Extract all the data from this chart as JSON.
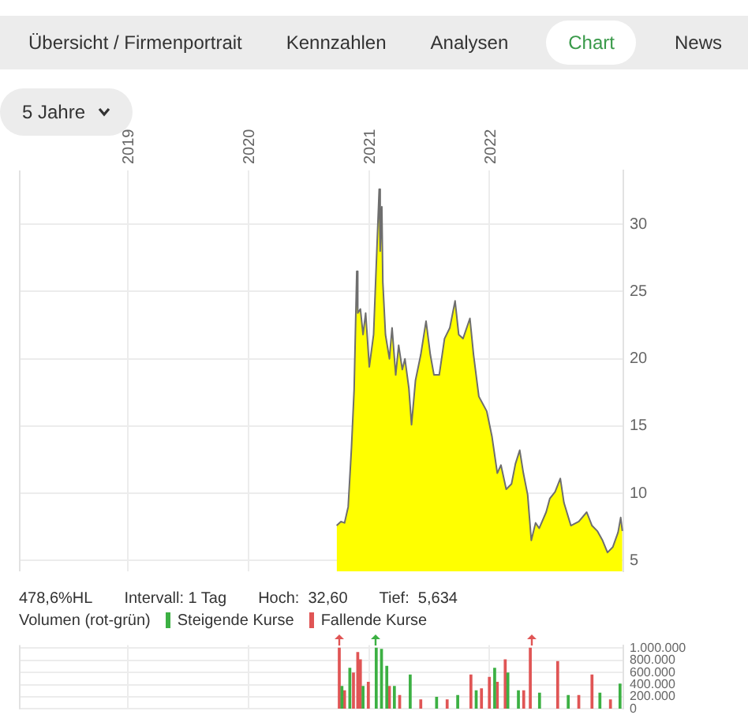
{
  "chart_data": [
    {
      "type": "other",
      "annotations": [
        "Übersicht / Firmenportrait",
        "Kennzahlen",
        "Analysen",
        "Chart",
        "News",
        "5 Jahre"
      ]
    },
    {
      "type": "area",
      "xlim": [
        "2018-02-05",
        "2023-02-11"
      ],
      "xticks": [
        "2019",
        "2020",
        "2021",
        "2022"
      ],
      "ylim": [
        4.2,
        34
      ],
      "yticks": [
        5,
        10,
        15,
        20,
        25,
        30
      ],
      "grid": true,
      "marker": "none",
      "annotations": [
        "478,6%HL",
        "Intervall: 1 Tag",
        "Hoch:  32,60",
        "Tief:  5,634"
      ],
      "x": [
        "2020-09-25",
        "2020-10-08",
        "2020-10-19",
        "2020-10-30",
        "2020-11-09",
        "2020-11-17",
        "2020-11-25",
        "2020-11-28",
        "2020-12-06",
        "2020-12-14",
        "2020-12-22",
        "2021-01-02",
        "2021-01-15",
        "2021-01-26",
        "2021-02-01",
        "2021-02-04",
        "2021-02-09",
        "2021-02-12",
        "2021-02-20",
        "2021-03-04",
        "2021-03-12",
        "2021-03-23",
        "2021-04-01",
        "2021-04-12",
        "2021-04-20",
        "2021-05-02",
        "2021-05-10",
        "2021-05-22",
        "2021-06-07",
        "2021-06-23",
        "2021-07-06",
        "2021-07-17",
        "2021-08-02",
        "2021-08-18",
        "2021-09-03",
        "2021-09-19",
        "2021-09-30",
        "2021-10-13",
        "2021-11-03",
        "2021-11-14",
        "2021-11-30",
        "2021-12-24",
        "2022-01-09",
        "2022-01-25",
        "2022-02-05",
        "2022-02-21",
        "2022-03-09",
        "2022-03-21",
        "2022-04-03",
        "2022-04-14",
        "2022-04-27",
        "2022-05-08",
        "2022-05-21",
        "2022-06-01",
        "2022-06-22",
        "2022-07-03",
        "2022-07-19",
        "2022-08-04",
        "2022-08-15",
        "2022-09-05",
        "2022-09-29",
        "2022-10-23",
        "2022-11-08",
        "2022-11-24",
        "2022-12-10",
        "2022-12-25",
        "2023-01-10",
        "2023-01-26",
        "2023-02-03",
        "2023-02-08"
      ],
      "series": [
        {
          "color": "#ffff00",
          "values": [
            7.6,
            7.9,
            7.8,
            9.0,
            13.4,
            17.7,
            26.5,
            23.4,
            23.7,
            21.8,
            23.4,
            19.4,
            21.8,
            28.8,
            32.6,
            28.0,
            31.3,
            25.7,
            21.8,
            20.0,
            22.3,
            18.8,
            21.0,
            19.2,
            20.0,
            17.8,
            15.1,
            18.4,
            20.3,
            22.8,
            20.3,
            18.8,
            18.8,
            21.5,
            22.3,
            24.3,
            21.8,
            21.5,
            23.0,
            20.3,
            17.2,
            16.1,
            14.2,
            11.5,
            12.1,
            10.3,
            10.7,
            12.2,
            13.2,
            11.5,
            9.9,
            6.5,
            7.8,
            7.4,
            8.6,
            9.6,
            10.1,
            11.1,
            9.3,
            7.6,
            7.9,
            8.6,
            7.6,
            7.2,
            6.5,
            5.6,
            6.0,
            7.1,
            8.2,
            7.2
          ]
        }
      ]
    },
    {
      "type": "bar",
      "title": "Volumen (rot-grün)",
      "legend": "top left",
      "xlim": [
        "2018-02-05",
        "2023-02-11"
      ],
      "xticks": [
        "2019",
        "2020",
        "2021",
        "2022"
      ],
      "tick_labels": "y",
      "ylim": [
        0,
        1050000
      ],
      "yticks": [
        {
          "value": 0,
          "label": "0"
        },
        {
          "value": 200000,
          "label": "200.000"
        },
        {
          "value": 400000,
          "label": "400.000"
        },
        {
          "value": 600000,
          "label": "600.000"
        },
        {
          "value": 800000,
          "label": "800.000"
        },
        {
          "value": 1000000,
          "label": "1.000.000"
        }
      ],
      "grid": true,
      "series": [
        {
          "name": "Steigende Kurse",
          "color": "#3cb043",
          "x": [
            "2020-10-11",
            "2020-11-04",
            "2020-12-14",
            "2021-01-23",
            "2021-02-08",
            "2021-02-24",
            "2021-03-19",
            "2021-05-06",
            "2021-07-25",
            "2021-09-27",
            "2021-11-22",
            "2022-01-17",
            "2022-02-26",
            "2022-03-30",
            "2022-06-02",
            "2022-08-28",
            "2022-12-02",
            "2023-02-01"
          ],
          "values": [
            370000,
            670000,
            370000,
            1000000,
            980000,
            700000,
            370000,
            560000,
            190000,
            220000,
            300000,
            670000,
            590000,
            300000,
            260000,
            220000,
            260000,
            410000
          ]
        },
        {
          "name": "Fallende Kurse",
          "color": "#e05555",
          "x": [
            "2020-10-03",
            "2020-10-19",
            "2020-11-15",
            "2020-11-28",
            "2020-12-06",
            "2020-12-30",
            "2021-03-04",
            "2021-04-04",
            "2021-06-07",
            "2021-08-26",
            "2021-11-06",
            "2021-12-08",
            "2022-01-01",
            "2022-01-25",
            "2022-02-18",
            "2022-04-15",
            "2022-05-05",
            "2022-07-27",
            "2022-09-29",
            "2022-11-08",
            "2023-01-03"
          ],
          "values": [
            1000000,
            300000,
            590000,
            930000,
            810000,
            440000,
            370000,
            220000,
            150000,
            150000,
            560000,
            330000,
            520000,
            440000,
            810000,
            300000,
            1000000,
            780000,
            220000,
            560000,
            150000
          ]
        }
      ]
    }
  ]
}
